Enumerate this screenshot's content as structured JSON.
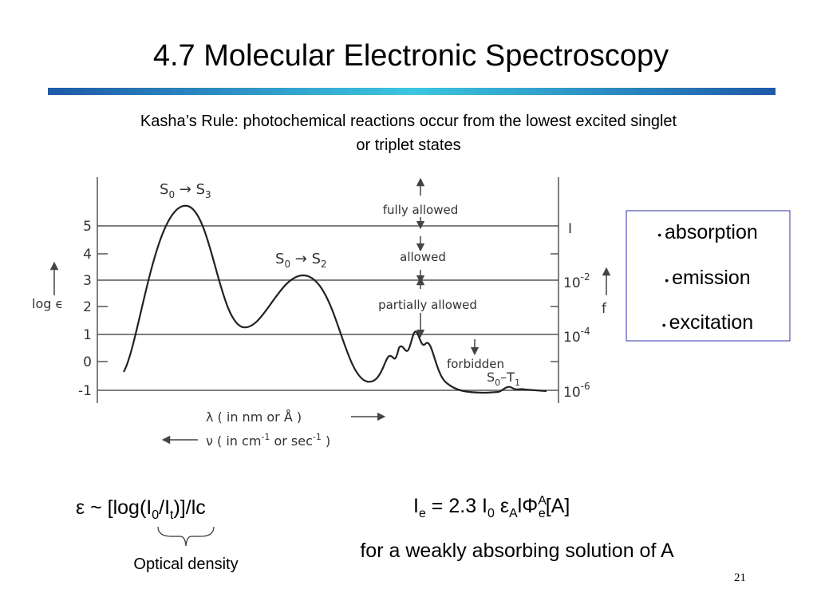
{
  "header": {
    "title": "4.7 Molecular Electronic Spectroscopy"
  },
  "subtitle": [
    "Kasha’s Rule: photochemical reactions occur from the lowest excited singlet",
    "or triplet states"
  ],
  "figure": {
    "left_ticks": [
      "5",
      "4",
      "3",
      "2",
      "1",
      "0",
      "-1"
    ],
    "left_label": "log ϵ",
    "right_ticks": [
      [
        "I"
      ],
      [
        "10",
        "-2"
      ],
      [
        "10",
        "-4"
      ],
      [
        "10",
        "-6"
      ]
    ],
    "right_label": "f",
    "transitions": [
      [
        "S",
        "0",
        "S",
        "3"
      ],
      [
        "S",
        "0",
        "S",
        "2"
      ],
      [
        "S",
        "0",
        "T",
        "1"
      ]
    ],
    "regions": [
      "fully allowed",
      "allowed",
      "partially allowed",
      "forbidden"
    ],
    "x_label_1": "λ ( in nm or Å )",
    "x_label_2": "ν ( in cm",
    "x_label_2_sup": "-1",
    "x_label_2_mid": " or sec",
    "x_label_2_end": " )"
  },
  "bullets": [
    "absorption",
    "emission",
    "excitation"
  ],
  "formula_1": [
    "ε ~ [log(I",
    "0",
    "/I",
    "t",
    ")]/lc"
  ],
  "formula_1_note": "Optical density",
  "formula_2": [
    "I",
    "e",
    " = 2.3 I",
    "0",
    " ε",
    "A",
    "lΦ",
    "A",
    "e",
    "[A]"
  ],
  "formula_2_note": "for a weakly absorbing solution of A",
  "page_number": "21"
}
